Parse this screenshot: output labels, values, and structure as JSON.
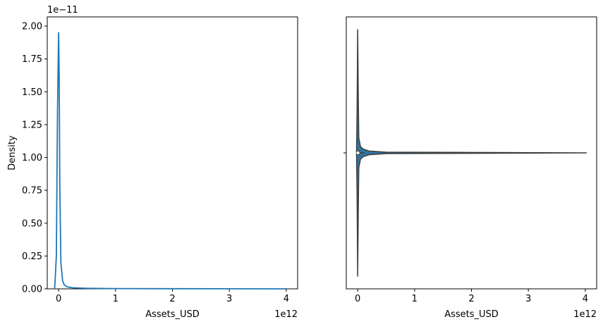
{
  "chart_data": [
    {
      "type": "line",
      "subtype": "kde",
      "xlabel": "Assets_USD",
      "ylabel": "Density",
      "x_offset_label": "1e12",
      "y_offset_label": "1e−11",
      "xlim": [
        -0.2,
        4.2
      ],
      "ylim": [
        0,
        2.07
      ],
      "x_ticks": [
        0,
        1,
        2,
        3,
        4
      ],
      "x_tick_labels": [
        "0",
        "1",
        "2",
        "3",
        "4"
      ],
      "y_ticks": [
        0,
        0.25,
        0.5,
        0.75,
        1.0,
        1.25,
        1.5,
        1.75,
        2.0
      ],
      "y_tick_labels": [
        "0.00",
        "0.25",
        "0.50",
        "0.75",
        "1.00",
        "1.25",
        "1.50",
        "1.75",
        "2.00"
      ],
      "grid": false,
      "color": "#1f77b4",
      "series": [
        {
          "x": [
            -0.07,
            -0.04,
            -0.02,
            0.0,
            0.01,
            0.02,
            0.04,
            0.07,
            0.1,
            0.15,
            0.25,
            0.5,
            1.0,
            2.0,
            3.0,
            4.0
          ],
          "y": [
            0.0,
            0.25,
            1.35,
            1.95,
            1.6,
            0.8,
            0.2,
            0.06,
            0.03,
            0.015,
            0.008,
            0.004,
            0.002,
            0.001,
            0.0005,
            0.0
          ]
        }
      ]
    },
    {
      "type": "violin",
      "xlabel": "Assets_USD",
      "ylabel": "",
      "x_offset_label": "1e12",
      "xlim": [
        -0.2,
        4.2
      ],
      "x_ticks": [
        0,
        1,
        2,
        3,
        4
      ],
      "x_tick_labels": [
        "0",
        "1",
        "2",
        "3",
        "4"
      ],
      "y_tick_labels": [
        ""
      ],
      "grid": false,
      "fill_color": "#3274a1",
      "line_color": "#3d3d3d",
      "range": [
        -0.02,
        4.02
      ],
      "whisker": [
        -0.01,
        0.12
      ],
      "iqr": [
        0.002,
        0.02
      ],
      "median": 0.005,
      "density_profile": {
        "x": [
          -0.02,
          -0.01,
          0.0,
          0.01,
          0.02,
          0.05,
          0.1,
          0.2,
          0.5,
          1.0,
          4.02
        ],
        "width": [
          0.0,
          0.35,
          1.0,
          0.5,
          0.12,
          0.05,
          0.03,
          0.015,
          0.006,
          0.004,
          0.0
        ]
      }
    }
  ]
}
